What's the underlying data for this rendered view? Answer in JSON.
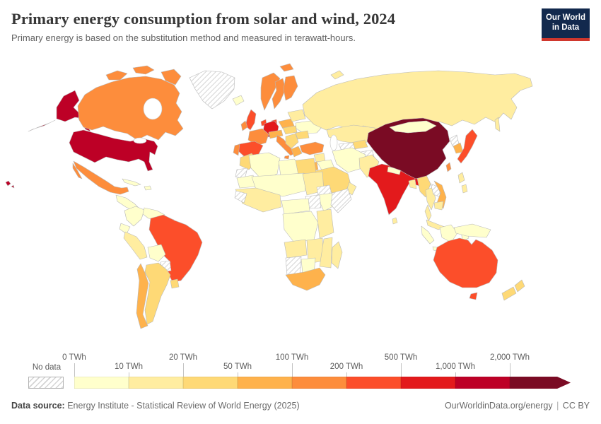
{
  "header": {
    "title": "Primary energy consumption from solar and wind, 2024",
    "subtitle": "Primary energy is based on the substitution method and measured in terawatt-hours.",
    "logo": {
      "line1": "Our World",
      "line2": "in Data"
    }
  },
  "legend": {
    "no_data_label": "No data"
  },
  "footer": {
    "source_label": "Data source:",
    "source_text": "Energy Institute - Statistical Review of World Energy (2025)",
    "link": "OurWorldinData.org/energy",
    "separator": "|",
    "license": "CC BY"
  },
  "colors": {
    "brand_navy": "#12294d",
    "brand_red": "#d0372d",
    "border_gray": "#b9b9b9",
    "text_dark": "#383838",
    "text_gray": "#616161"
  },
  "chart_data": {
    "type": "choropleth",
    "title": "Primary energy consumption from solar and wind, 2024",
    "unit": "TWh",
    "bin_edges": [
      0,
      10,
      20,
      50,
      100,
      200,
      500,
      1000,
      2000
    ],
    "bin_labels": [
      "0 TWh",
      "10 TWh",
      "20 TWh",
      "50 TWh",
      "100 TWh",
      "200 TWh",
      "500 TWh",
      "1,000 TWh",
      "2,000 TWh"
    ],
    "bin_ranges": [
      "0-10 TWh",
      "10-20 TWh",
      "20-50 TWh",
      "50-100 TWh",
      "100-200 TWh",
      "200-500 TWh",
      "500-1,000 TWh",
      "1,000-2,000 TWh",
      ">2,000 TWh"
    ],
    "bin_colors": [
      "#ffffcc",
      "#ffeda0",
      "#fed976",
      "#feb24c",
      "#fd8d3c",
      "#fc4e2a",
      "#e31a1c",
      "#bd0026",
      "#7a0b24"
    ],
    "no_data_value": "nd",
    "countries": {
      "united-states": 7,
      "canada": 4,
      "greenland": "nd",
      "mexico": 4,
      "central-america": 0,
      "cuba": 0,
      "hispaniola": 0,
      "colombia": 0,
      "venezuela": 0,
      "guyanas": "nd",
      "ecuador": 0,
      "peru": 1,
      "brazil": 5,
      "bolivia": 0,
      "paraguay": "nd",
      "uruguay": 2,
      "argentina": 2,
      "chile": 3,
      "iceland": 0,
      "united-kingdom": 5,
      "ireland": 4,
      "norway": 4,
      "sweden": 4,
      "finland": 4,
      "denmark": 5,
      "germany": 6,
      "netherlands": 5,
      "france": 4,
      "spain": 5,
      "portugal": 4,
      "italy": 4,
      "alpine-states": 3,
      "poland": 3,
      "czech-region": 2,
      "balkans": 2,
      "greece": 3,
      "romania": 2,
      "ukraine": 0,
      "belarus-baltics": 1,
      "russia": 1,
      "kazakhstan": 1,
      "uzbekistan": 2,
      "turkmenistan": "nd",
      "kyrgyz-tajik": 0,
      "afghanistan": "nd",
      "turkey": 4,
      "syria": 1,
      "iraq": 0,
      "jordan-israel": 3,
      "iran": 0,
      "saudi-arabia": 2,
      "yemen": 3,
      "oman": 1,
      "morocco": 2,
      "western-sahara": "nd",
      "algeria": 0,
      "libya": 0,
      "egypt": 2,
      "mauritania": 0,
      "sahel": 0,
      "sudan": 1,
      "west-africa": 1,
      "guinea-region": "nd",
      "ethiopia": 0,
      "eritrea-djibouti": "nd",
      "somalia": "nd",
      "south-sudan": "nd",
      "central-africa": 0,
      "drc": 0,
      "kenya-tanzania": 1,
      "angola": 1,
      "zambia-zimbabwe": 1,
      "mozambique": 1,
      "namibia": "nd",
      "botswana": 0,
      "south-africa": 3,
      "madagascar": 1,
      "pakistan": 1,
      "india": 6,
      "nepal": 0,
      "bangladesh": 1,
      "sri-lanka": 1,
      "myanmar": 2,
      "thailand": 1,
      "laos": "nd",
      "vietnam": 3,
      "cambodia": 1,
      "malaysia": 1,
      "china": 8,
      "mongolia": 0,
      "north-korea": "nd",
      "south-korea": 3,
      "japan": 5,
      "taiwan": 4,
      "philippines": 1,
      "indonesia": 0,
      "new-guinea": 0,
      "australia": 5,
      "new-zealand": 2
    }
  }
}
